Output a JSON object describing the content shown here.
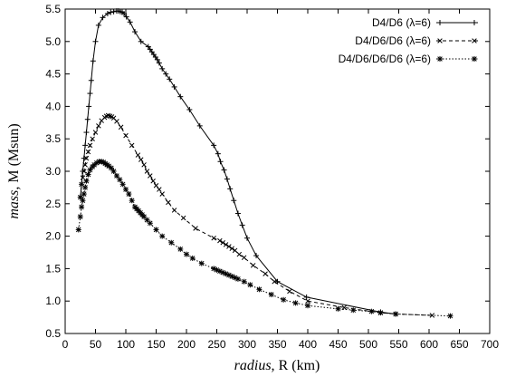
{
  "chart_data": {
    "type": "line",
    "xlabel": {
      "italic": "radius,",
      "rest": " R (km)"
    },
    "ylabel": {
      "italic": "mass,",
      "rest": " M (Msun)"
    },
    "xlim": [
      0,
      700
    ],
    "ylim": [
      0.5,
      5.5
    ],
    "xticks": [
      "0",
      "50",
      "100",
      "150",
      "200",
      "250",
      "300",
      "350",
      "400",
      "450",
      "500",
      "550",
      "600",
      "650",
      "700"
    ],
    "yticks": [
      "0.5",
      "1.0",
      "1.5",
      "2.0",
      "2.5",
      "3.0",
      "3.5",
      "4.0",
      "4.5",
      "5.0",
      "5.5"
    ],
    "grid": false,
    "legend_position": "top-right",
    "series": [
      {
        "name": "D4/D6 (λ=6)",
        "line_style": "solid",
        "marker": "plus",
        "x": [
          25,
          27,
          29,
          31,
          33,
          35,
          37,
          39,
          41,
          43,
          46,
          50,
          55,
          62,
          70,
          75,
          80,
          85,
          88,
          91,
          94,
          97,
          101,
          107,
          115,
          125,
          137,
          140,
          143,
          146,
          149,
          152,
          155,
          160,
          166,
          172,
          180,
          190,
          205,
          222,
          245,
          252,
          256,
          262,
          267,
          272,
          278,
          285,
          292,
          300,
          315,
          350,
          398,
          520,
          545
        ],
        "y": [
          2.6,
          2.8,
          3.0,
          3.2,
          3.4,
          3.6,
          3.8,
          4.0,
          4.2,
          4.4,
          4.7,
          5.0,
          5.25,
          5.37,
          5.43,
          5.45,
          5.46,
          5.47,
          5.47,
          5.46,
          5.45,
          5.43,
          5.38,
          5.3,
          5.15,
          5.0,
          4.92,
          4.88,
          4.84,
          4.8,
          4.76,
          4.72,
          4.67,
          4.58,
          4.5,
          4.42,
          4.3,
          4.15,
          3.95,
          3.7,
          3.4,
          3.27,
          3.15,
          3.02,
          2.88,
          2.73,
          2.55,
          2.35,
          2.17,
          1.97,
          1.7,
          1.3,
          1.06,
          0.83,
          0.8
        ]
      },
      {
        "name": "D4/D6/D6 (λ=6)",
        "line_style": "dashed",
        "marker": "cross",
        "x": [
          25,
          27,
          29,
          31,
          33,
          35,
          38,
          41,
          45,
          50,
          55,
          60,
          65,
          68,
          71,
          74,
          77,
          80,
          85,
          92,
          100,
          110,
          120,
          125,
          130,
          135,
          140,
          145,
          150,
          155,
          160,
          170,
          180,
          195,
          215,
          245,
          255,
          260,
          265,
          270,
          275,
          280,
          287,
          295,
          310,
          330,
          345,
          370,
          400,
          460,
          520,
          545,
          605
        ],
        "y": [
          2.6,
          2.8,
          2.9,
          3.0,
          3.1,
          3.2,
          3.3,
          3.4,
          3.5,
          3.6,
          3.7,
          3.78,
          3.83,
          3.85,
          3.86,
          3.85,
          3.84,
          3.82,
          3.77,
          3.68,
          3.55,
          3.4,
          3.25,
          3.18,
          3.1,
          3.0,
          2.93,
          2.85,
          2.78,
          2.72,
          2.65,
          2.52,
          2.4,
          2.28,
          2.12,
          1.97,
          1.93,
          1.9,
          1.87,
          1.84,
          1.81,
          1.78,
          1.72,
          1.67,
          1.55,
          1.42,
          1.3,
          1.15,
          1.0,
          0.9,
          0.82,
          0.8,
          0.78
        ]
      },
      {
        "name": "D4/D6/D6/D6 (λ=6)",
        "line_style": "dotted",
        "marker": "star",
        "x": [
          22,
          25,
          27,
          29,
          31,
          33,
          35,
          38,
          41,
          45,
          48,
          52,
          56,
          60,
          63,
          66,
          69,
          72,
          76,
          80,
          85,
          90,
          95,
          100,
          105,
          110,
          115,
          118,
          121,
          124,
          127,
          130,
          135,
          140,
          150,
          160,
          175,
          190,
          200,
          210,
          225,
          245,
          250,
          255,
          260,
          265,
          270,
          275,
          280,
          285,
          295,
          305,
          320,
          340,
          360,
          380,
          400,
          450,
          475,
          505,
          520,
          545,
          635
        ],
        "y": [
          2.1,
          2.3,
          2.45,
          2.55,
          2.65,
          2.75,
          2.85,
          2.95,
          3.02,
          3.07,
          3.1,
          3.13,
          3.15,
          3.15,
          3.14,
          3.12,
          3.1,
          3.08,
          3.05,
          3.0,
          2.93,
          2.87,
          2.8,
          2.72,
          2.65,
          2.55,
          2.45,
          2.42,
          2.39,
          2.36,
          2.33,
          2.3,
          2.25,
          2.2,
          2.1,
          2.0,
          1.9,
          1.8,
          1.72,
          1.66,
          1.58,
          1.5,
          1.48,
          1.46,
          1.44,
          1.42,
          1.4,
          1.38,
          1.36,
          1.34,
          1.3,
          1.25,
          1.18,
          1.1,
          1.02,
          0.97,
          0.93,
          0.88,
          0.86,
          0.84,
          0.82,
          0.8,
          0.77
        ]
      }
    ]
  }
}
